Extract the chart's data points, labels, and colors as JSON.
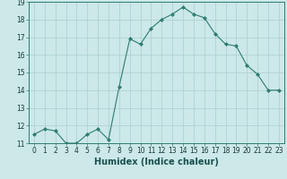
{
  "x_values": [
    0,
    1,
    2,
    3,
    4,
    5,
    6,
    7,
    8,
    9,
    10,
    11,
    12,
    13,
    14,
    15,
    16,
    17,
    18,
    19,
    20,
    21,
    22,
    23
  ],
  "y_values": [
    11.5,
    11.8,
    11.7,
    11.0,
    11.0,
    11.5,
    11.8,
    11.2,
    14.2,
    16.9,
    16.6,
    17.5,
    18.0,
    18.3,
    18.7,
    18.3,
    18.1,
    17.2,
    16.6,
    16.5,
    15.4,
    14.9,
    14.0,
    14.0
  ],
  "xlabel": "Humidex (Indice chaleur)",
  "line_color": "#2e7d6e",
  "marker": "D",
  "marker_size": 2.0,
  "background_color": "#cce8e8",
  "grid_color": "#aacfcf",
  "ylim": [
    11,
    19
  ],
  "xlim": [
    -0.5,
    23.5
  ],
  "yticks": [
    11,
    12,
    13,
    14,
    15,
    16,
    17,
    18,
    19
  ],
  "xticks": [
    0,
    1,
    2,
    3,
    4,
    5,
    6,
    7,
    8,
    9,
    10,
    11,
    12,
    13,
    14,
    15,
    16,
    17,
    18,
    19,
    20,
    21,
    22,
    23
  ],
  "tick_label_fontsize": 5.5,
  "xlabel_fontsize": 7.0
}
